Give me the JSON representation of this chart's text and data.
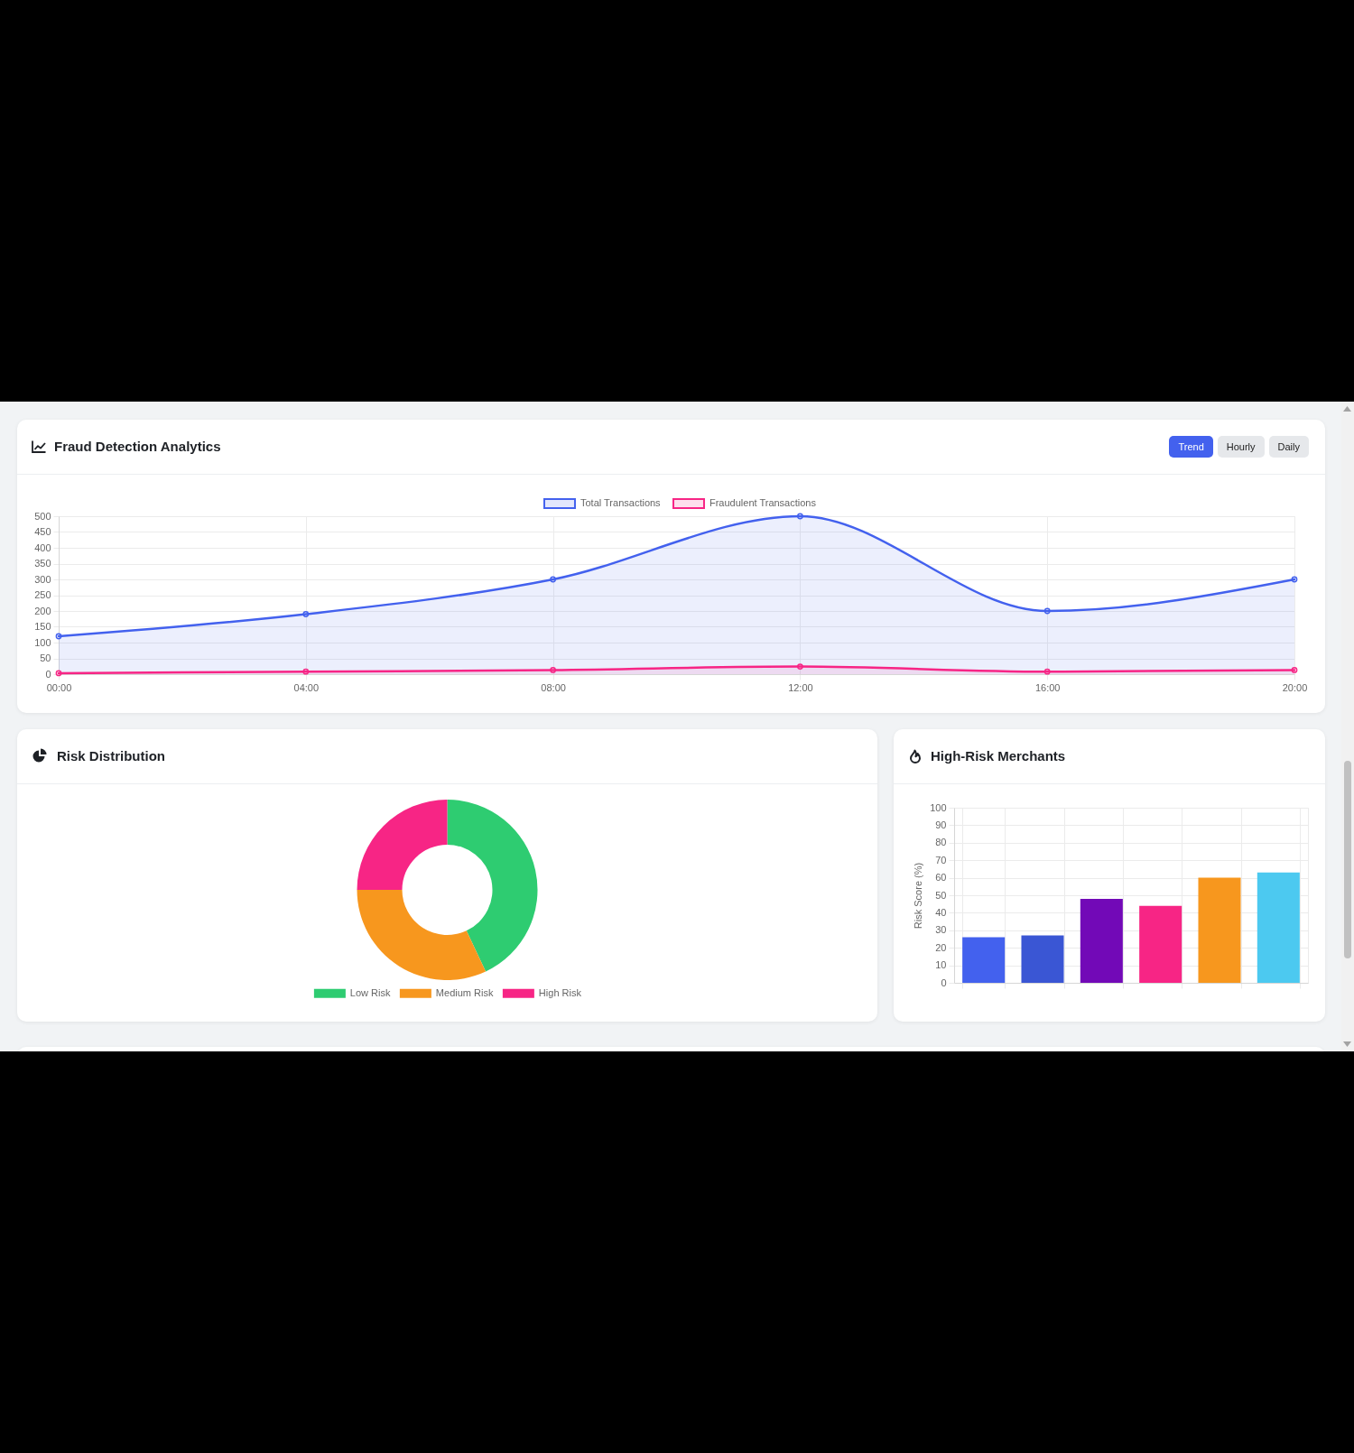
{
  "chart_data": [
    {
      "type": "area",
      "title": "Fraud Detection Analytics",
      "annotations": [
        "Trend",
        "Hourly",
        "Daily"
      ],
      "x": [
        0,
        4,
        8,
        12,
        16,
        20
      ],
      "xlim": [
        0,
        20
      ],
      "xticks": [
        {
          "value": 0,
          "label": "00:00"
        },
        {
          "value": 4,
          "label": "04:00"
        },
        {
          "value": 8,
          "label": "08:00"
        },
        {
          "value": 12,
          "label": "12:00"
        },
        {
          "value": 16,
          "label": "16:00"
        },
        {
          "value": 20,
          "label": "20:00"
        }
      ],
      "ylim": [
        0,
        500
      ],
      "yticks": [
        0,
        50,
        100,
        150,
        200,
        250,
        300,
        350,
        400,
        450,
        500
      ],
      "series": [
        {
          "name": "Total Transactions",
          "color": "#4361ee",
          "values": [
            120,
            190,
            300,
            500,
            200,
            300
          ]
        },
        {
          "name": "Fraudulent Transactions",
          "color": "#f72585",
          "values": [
            3,
            8,
            13,
            24,
            8,
            13
          ]
        }
      ],
      "grid": true,
      "legend": "top",
      "marker": "circle"
    },
    {
      "type": "donut",
      "title": "Risk Distribution",
      "categories": [
        "Low Risk",
        "Medium Risk",
        "High Risk"
      ],
      "values": [
        43,
        32,
        25
      ],
      "colors": [
        "#2ecc71",
        "#f7971e",
        "#f72585"
      ],
      "legend": "bottom"
    },
    {
      "type": "bar",
      "title": "High-Risk Merchants",
      "ylabel": "Risk Score (%)",
      "categories": [
        null,
        null,
        null,
        null,
        null,
        null
      ],
      "values": [
        26,
        27,
        48,
        44,
        60,
        63
      ],
      "colors": [
        "#4361ee",
        "#3a56d4",
        "#7209b7",
        "#f72585",
        "#f7971e",
        "#4cc9f0"
      ],
      "ylim": [
        0,
        100
      ],
      "yticks": [
        0,
        10,
        20,
        30,
        40,
        50,
        60,
        70,
        80,
        90,
        100
      ],
      "grid": true
    }
  ]
}
